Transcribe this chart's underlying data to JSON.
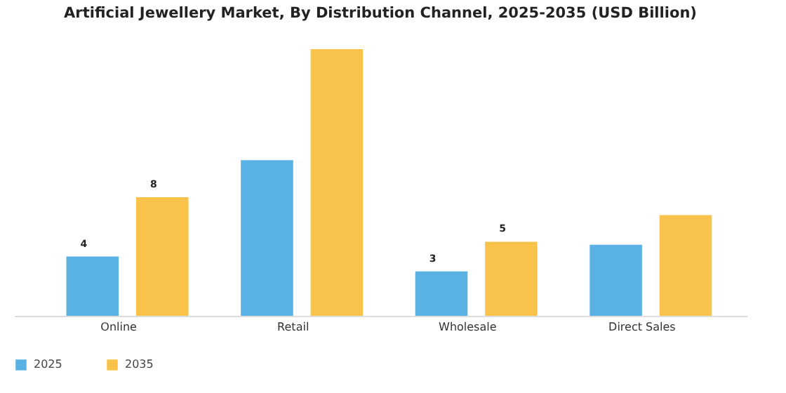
{
  "chart_data": {
    "type": "bar",
    "title": "Artificial Jewellery Market, By Distribution Channel, 2025-2035 (USD Billion)",
    "categories": [
      "Online",
      "Retail",
      "Wholesale",
      "Direct Sales"
    ],
    "series": [
      {
        "name": "2025",
        "color": "#5ab1e3",
        "values": [
          4,
          10.5,
          3,
          4.8
        ],
        "value_labels": [
          "4",
          null,
          "3",
          null
        ]
      },
      {
        "name": "2035",
        "color": "#f9c34b",
        "values": [
          8,
          18,
          5,
          6.8
        ],
        "value_labels": [
          "8",
          null,
          "5",
          null
        ]
      }
    ],
    "legend": "bottom",
    "grid": false
  }
}
